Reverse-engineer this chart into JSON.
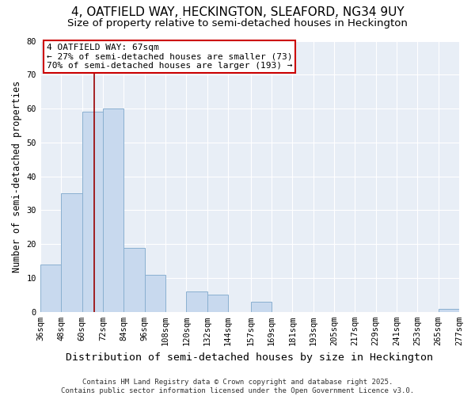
{
  "title_line1": "4, OATFIELD WAY, HECKINGTON, SLEAFORD, NG34 9UY",
  "title_line2": "Size of property relative to semi-detached houses in Heckington",
  "xlabel": "Distribution of semi-detached houses by size in Heckington",
  "ylabel": "Number of semi-detached properties",
  "bar_color": "#c8d9ee",
  "bar_edge_color": "#8ab0d0",
  "plot_bg_color": "#e8eef6",
  "fig_bg_color": "#ffffff",
  "grid_color": "#ffffff",
  "property_line_color": "#990000",
  "annotation_box_color": "#ffffff",
  "annotation_box_edge": "#cc0000",
  "bins": [
    36,
    48,
    60,
    72,
    84,
    96,
    108,
    120,
    132,
    144,
    157,
    169,
    181,
    193,
    205,
    217,
    229,
    241,
    253,
    265,
    277
  ],
  "counts": [
    14,
    35,
    59,
    60,
    19,
    11,
    0,
    6,
    5,
    0,
    3,
    0,
    0,
    0,
    0,
    0,
    0,
    0,
    0,
    1
  ],
  "property_size": 67,
  "annotation_line1": "4 OATFIELD WAY: 67sqm",
  "annotation_line2": "← 27% of semi-detached houses are smaller (73)",
  "annotation_line3": "70% of semi-detached houses are larger (193) →",
  "ylim": [
    0,
    80
  ],
  "yticks": [
    0,
    10,
    20,
    30,
    40,
    50,
    60,
    70,
    80
  ],
  "footnote": "Contains HM Land Registry data © Crown copyright and database right 2025.\nContains public sector information licensed under the Open Government Licence v3.0.",
  "title_fontsize": 11,
  "subtitle_fontsize": 9.5,
  "ylabel_fontsize": 8.5,
  "xlabel_fontsize": 9.5,
  "tick_fontsize": 7.5,
  "annotation_fontsize": 8,
  "footnote_fontsize": 6.5
}
